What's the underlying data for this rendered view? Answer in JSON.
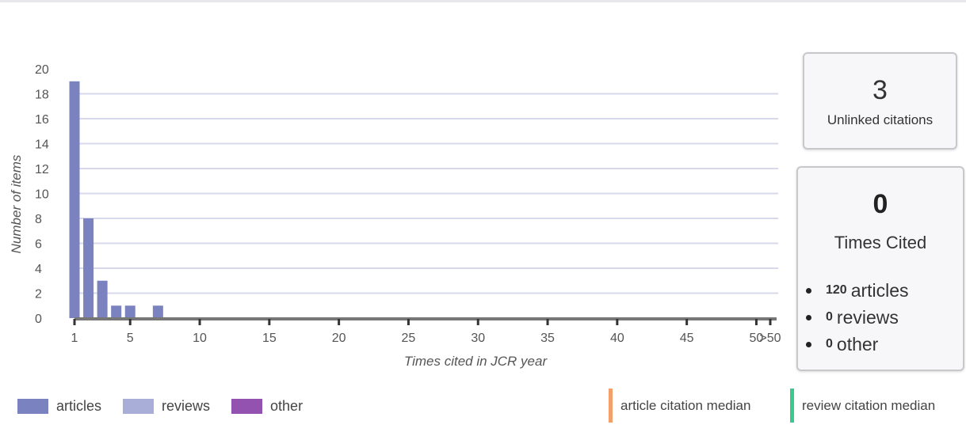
{
  "chart_data": {
    "type": "bar",
    "x": [
      1,
      2,
      3,
      4,
      5,
      6,
      7
    ],
    "series": [
      {
        "name": "articles",
        "color": "#7a83bf",
        "values": [
          19,
          8,
          3,
          1,
          1,
          0,
          1
        ]
      },
      {
        "name": "reviews",
        "color": "#a9aed8",
        "values": [
          0,
          0,
          0,
          0,
          0,
          0,
          0
        ]
      },
      {
        "name": "other",
        "color": "#9452b0",
        "values": [
          0,
          0,
          0,
          0,
          0,
          0,
          0
        ]
      }
    ],
    "xlabel": "Times cited in JCR year",
    "ylabel": "Number of items",
    "ylim": [
      0,
      20
    ],
    "yticks": [
      0,
      2,
      4,
      6,
      8,
      10,
      12,
      14,
      16,
      18,
      20
    ],
    "xticks": [
      "1",
      "5",
      "10",
      "15",
      "20",
      "25",
      "30",
      "35",
      "40",
      "45",
      "50",
      ">50"
    ],
    "xtick_values": [
      1,
      5,
      10,
      15,
      20,
      25,
      30,
      35,
      40,
      45,
      50,
      51
    ],
    "xlim": [
      0.9,
      51.1
    ],
    "grid": true,
    "legend_position": "bottom-left"
  },
  "legend": {
    "items": [
      {
        "label": "articles",
        "color": "#7a83bf"
      },
      {
        "label": "reviews",
        "color": "#a9aed8"
      },
      {
        "label": "other",
        "color": "#9452b0"
      }
    ],
    "medians": [
      {
        "label": "article citation median",
        "color": "#f4a06b"
      },
      {
        "label": "review citation median",
        "color": "#3cc88f"
      }
    ]
  },
  "unlinked": {
    "count": "3",
    "label": "Unlinked citations"
  },
  "times_cited": {
    "count": "0",
    "label": "Times Cited",
    "items": [
      {
        "num": "120",
        "label": "articles"
      },
      {
        "num": "0",
        "label": "reviews"
      },
      {
        "num": "0",
        "label": "other"
      }
    ]
  },
  "colors": {
    "grid": "#d8d8ec",
    "axis": "#777777",
    "tick_text": "#555555"
  }
}
